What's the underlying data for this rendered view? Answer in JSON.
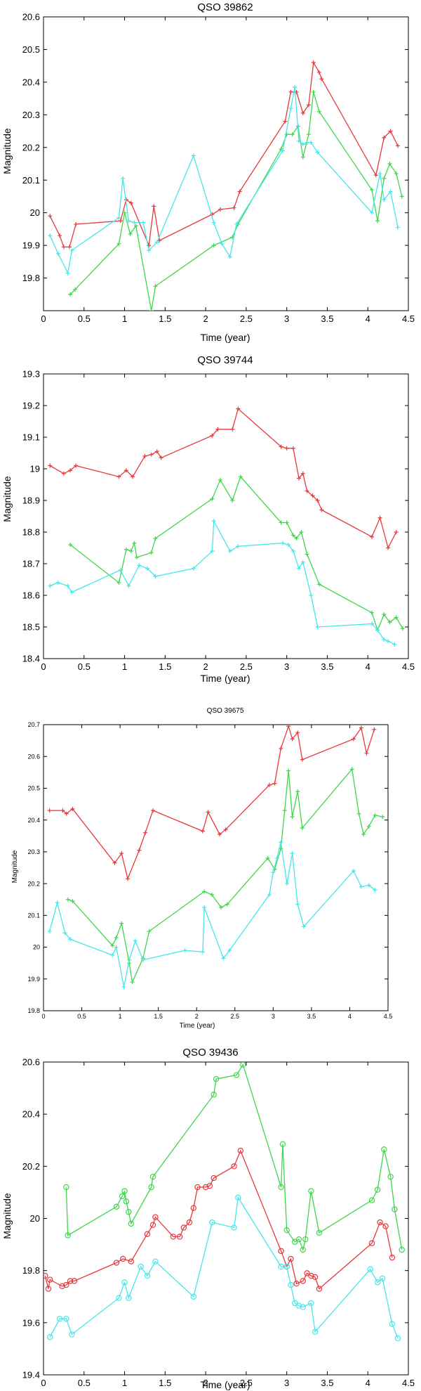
{
  "series_colors": {
    "red": "#e8383c",
    "green": "#3fd64a",
    "cyan": "#45e6ea"
  },
  "chart_data": [
    {
      "type": "line",
      "title": "QSO 39862",
      "xlabel": "Time (year)",
      "ylabel": "Magnitude",
      "xlim": [
        0,
        4.5
      ],
      "ylim": [
        19.7,
        20.6
      ],
      "xticks": [
        0,
        0.5,
        1,
        1.5,
        2,
        2.5,
        3,
        3.5,
        4,
        4.5
      ],
      "yticks": [
        19.8,
        19.9,
        20,
        20.1,
        20.2,
        20.3,
        20.4,
        20.5,
        20.6
      ],
      "xtick_labels": [
        "0",
        "0.5",
        "1",
        "1.5",
        "2",
        "2.5",
        "3",
        "3.5",
        "4",
        "4.5"
      ],
      "ytick_labels": [
        "19.8",
        "19.9",
        "20",
        "20.1",
        "20.2",
        "20.3",
        "20.4",
        "20.5",
        "20.6"
      ],
      "marker": "plus",
      "series": [
        {
          "name": "red",
          "color": "#e8383c",
          "x": [
            0.08,
            0.2,
            0.25,
            0.32,
            0.4,
            0.95,
            1.02,
            1.08,
            1.3,
            1.36,
            1.43,
            2.08,
            2.18,
            2.35,
            2.42,
            2.98,
            3.05,
            3.12,
            3.2,
            3.27,
            3.33,
            3.4,
            3.43,
            4.1,
            4.2,
            4.28,
            4.37
          ],
          "y": [
            19.99,
            19.93,
            19.895,
            19.895,
            19.965,
            19.975,
            20.04,
            20.03,
            19.9,
            20.02,
            19.915,
            19.995,
            20.01,
            20.015,
            20.065,
            20.28,
            20.37,
            20.37,
            20.305,
            20.33,
            20.46,
            20.43,
            20.41,
            20.115,
            20.23,
            20.25,
            20.205
          ]
        },
        {
          "name": "green",
          "color": "#3fd64a",
          "x": [
            0.33,
            0.39,
            0.93,
            1.0,
            1.07,
            1.14,
            1.33,
            1.38,
            2.1,
            2.33,
            2.4,
            2.93,
            3.0,
            3.07,
            3.14,
            3.2,
            3.27,
            3.33,
            3.4,
            4.05,
            4.12,
            4.2,
            4.27,
            4.35,
            4.42
          ],
          "y": [
            19.75,
            19.765,
            19.905,
            20.0,
            19.935,
            19.96,
            19.7,
            19.775,
            19.9,
            19.925,
            19.965,
            20.195,
            20.24,
            20.24,
            20.265,
            20.17,
            20.24,
            20.37,
            20.31,
            20.07,
            19.975,
            20.105,
            20.15,
            20.12,
            20.05
          ]
        },
        {
          "name": "cyan",
          "color": "#45e6ea",
          "x": [
            0.08,
            0.18,
            0.3,
            0.35,
            0.93,
            0.98,
            1.05,
            1.12,
            1.23,
            1.3,
            1.4,
            1.85,
            2.1,
            2.2,
            2.3,
            2.38,
            2.95,
            3.05,
            3.1,
            3.15,
            3.2,
            3.25,
            3.3,
            3.38,
            4.05,
            4.15,
            4.2,
            4.28,
            4.37
          ],
          "y": [
            19.93,
            19.875,
            19.815,
            19.885,
            19.985,
            20.105,
            19.975,
            19.97,
            19.97,
            19.885,
            19.91,
            20.175,
            19.97,
            19.905,
            19.865,
            19.965,
            20.19,
            20.32,
            20.385,
            20.22,
            20.21,
            20.215,
            20.215,
            20.185,
            20.0,
            20.12,
            20.04,
            20.065,
            19.955
          ]
        }
      ]
    },
    {
      "type": "line",
      "title": "QSO 39744",
      "xlabel": "Time (year)",
      "ylabel": "Magnitude",
      "xlim": [
        0,
        4.5
      ],
      "ylim": [
        18.4,
        19.3
      ],
      "xticks": [
        0,
        0.5,
        1,
        1.5,
        2,
        2.5,
        3,
        3.5,
        4,
        4.5
      ],
      "yticks": [
        18.4,
        18.5,
        18.6,
        18.7,
        18.8,
        18.9,
        19,
        19.1,
        19.2,
        19.3
      ],
      "xtick_labels": [
        "0",
        "0.5",
        "1",
        "1.5",
        "2",
        "2.5",
        "3",
        "3.5",
        "4",
        "4.5"
      ],
      "ytick_labels": [
        "18.4",
        "18.5",
        "18.6",
        "18.7",
        "18.8",
        "18.9",
        "19",
        "19.1",
        "19.2",
        "19.3"
      ],
      "marker": "plus",
      "series": [
        {
          "name": "red",
          "color": "#e8383c",
          "x": [
            0.08,
            0.25,
            0.33,
            0.4,
            0.93,
            1.02,
            1.1,
            1.25,
            1.33,
            1.4,
            1.45,
            2.08,
            2.15,
            2.33,
            2.4,
            2.93,
            3.0,
            3.08,
            3.15,
            3.2,
            3.25,
            3.32,
            3.38,
            3.43,
            4.05,
            4.15,
            4.25,
            4.35
          ],
          "y": [
            19.01,
            18.985,
            18.995,
            19.01,
            18.975,
            18.995,
            18.975,
            19.04,
            19.045,
            19.055,
            19.035,
            19.105,
            19.125,
            19.125,
            19.19,
            19.07,
            19.065,
            19.065,
            18.97,
            18.985,
            18.93,
            18.915,
            18.9,
            18.87,
            18.785,
            18.845,
            18.75,
            18.8
          ]
        },
        {
          "name": "green",
          "color": "#3fd64a",
          "x": [
            0.33,
            0.93,
            1.02,
            1.08,
            1.12,
            1.15,
            1.33,
            1.38,
            2.08,
            2.18,
            2.33,
            2.43,
            2.93,
            3.0,
            3.08,
            3.12,
            3.18,
            3.25,
            3.4,
            4.05,
            4.12,
            4.2,
            4.27,
            4.35,
            4.43
          ],
          "y": [
            18.76,
            18.64,
            18.745,
            18.74,
            18.765,
            18.72,
            18.735,
            18.78,
            18.905,
            18.965,
            18.9,
            18.975,
            18.83,
            18.83,
            18.79,
            18.78,
            18.8,
            18.73,
            18.635,
            18.545,
            18.49,
            18.54,
            18.515,
            18.53,
            18.495
          ]
        },
        {
          "name": "cyan",
          "color": "#45e6ea",
          "x": [
            0.08,
            0.18,
            0.3,
            0.35,
            0.95,
            1.05,
            1.18,
            1.28,
            1.38,
            1.85,
            2.08,
            2.1,
            2.3,
            2.4,
            2.95,
            3.02,
            3.08,
            3.15,
            3.2,
            3.3,
            3.38,
            4.05,
            4.12,
            4.2,
            4.25,
            4.33
          ],
          "y": [
            18.63,
            18.64,
            18.63,
            18.61,
            18.68,
            18.63,
            18.695,
            18.685,
            18.66,
            18.685,
            18.74,
            18.835,
            18.74,
            18.755,
            18.765,
            18.76,
            18.74,
            18.685,
            18.705,
            18.6,
            18.5,
            18.51,
            18.49,
            18.46,
            18.455,
            18.445
          ]
        }
      ]
    },
    {
      "type": "line",
      "title": "QSO 39675",
      "xlabel": "Time (year)",
      "ylabel": "Magnitude",
      "xlim": [
        0,
        4.5
      ],
      "ylim": [
        19.8,
        20.7
      ],
      "xticks": [
        0,
        0.5,
        1,
        1.5,
        2,
        2.5,
        3,
        3.5,
        4,
        4.5
      ],
      "yticks": [
        19.8,
        19.9,
        20,
        20.1,
        20.2,
        20.3,
        20.4,
        20.5,
        20.6,
        20.7
      ],
      "xtick_labels": [
        "0",
        "0.5",
        "1",
        "1.5",
        "2",
        "2.5",
        "3",
        "3.5",
        "4",
        "4.5"
      ],
      "ytick_labels": [
        "19.8",
        "19.9",
        "20",
        "20.1",
        "20.2",
        "20.3",
        "20.4",
        "20.5",
        "20.6",
        "20.7"
      ],
      "marker": "plus",
      "series": [
        {
          "name": "red",
          "color": "#e8383c",
          "x": [
            0.08,
            0.25,
            0.3,
            0.38,
            0.93,
            1.02,
            1.1,
            1.25,
            1.33,
            1.43,
            2.08,
            2.15,
            2.3,
            2.38,
            2.95,
            3.02,
            3.1,
            3.2,
            3.25,
            3.32,
            3.38,
            4.05,
            4.15,
            4.22,
            4.32
          ],
          "y": [
            20.43,
            20.43,
            20.42,
            20.435,
            20.265,
            20.295,
            20.215,
            20.305,
            20.36,
            20.43,
            20.365,
            20.425,
            20.355,
            20.37,
            20.51,
            20.515,
            20.625,
            20.695,
            20.655,
            20.675,
            20.59,
            20.655,
            20.69,
            20.61,
            20.685
          ]
        },
        {
          "name": "green",
          "color": "#3fd64a",
          "x": [
            0.32,
            0.38,
            0.9,
            0.95,
            1.02,
            1.12,
            1.16,
            1.3,
            1.38,
            2.1,
            2.2,
            2.32,
            2.4,
            2.93,
            3.02,
            3.1,
            3.15,
            3.2,
            3.25,
            3.32,
            3.38,
            4.03,
            4.12,
            4.18,
            4.25,
            4.33,
            4.43
          ],
          "y": [
            20.15,
            20.145,
            20.005,
            20.03,
            20.075,
            19.95,
            19.89,
            19.965,
            20.05,
            20.175,
            20.165,
            20.125,
            20.135,
            20.28,
            20.245,
            20.31,
            20.43,
            20.555,
            20.41,
            20.49,
            20.375,
            20.56,
            20.42,
            20.355,
            20.38,
            20.415,
            20.41
          ]
        },
        {
          "name": "cyan",
          "color": "#45e6ea",
          "x": [
            0.08,
            0.18,
            0.28,
            0.35,
            0.9,
            0.95,
            1.05,
            1.12,
            1.2,
            1.3,
            1.85,
            2.08,
            2.1,
            2.35,
            2.43,
            2.95,
            3.0,
            3.05,
            3.1,
            3.18,
            3.25,
            3.32,
            3.4,
            4.05,
            4.15,
            4.25,
            4.33
          ],
          "y": [
            20.05,
            20.14,
            20.045,
            20.025,
            19.975,
            20.0,
            19.875,
            19.96,
            20.02,
            19.96,
            19.99,
            19.985,
            20.125,
            19.965,
            19.99,
            20.165,
            20.235,
            20.28,
            20.33,
            20.2,
            20.295,
            20.135,
            20.065,
            20.24,
            20.19,
            20.195,
            20.18
          ]
        }
      ]
    },
    {
      "type": "line",
      "title": "QSO 39436",
      "xlabel": "Time (year)",
      "ylabel": "Magnitude",
      "xlim": [
        0,
        4.5
      ],
      "ylim": [
        19.4,
        20.6
      ],
      "xticks": [
        0,
        0.5,
        1,
        1.5,
        2,
        2.5,
        3,
        3.5,
        4,
        4.5
      ],
      "yticks": [
        19.4,
        19.6,
        19.8,
        20,
        20.2,
        20.4,
        20.6
      ],
      "xtick_labels": [
        "0",
        "0.5",
        "1",
        "1.5",
        "2",
        "2.5",
        "3",
        "3.5",
        "4",
        "4.5"
      ],
      "ytick_labels": [
        "19.4",
        "19.6",
        "19.8",
        "20",
        "20.2",
        "20.4",
        "20.6"
      ],
      "marker": "circle",
      "series": [
        {
          "name": "red",
          "color": "#e8383c",
          "x": [
            0.02,
            0.06,
            0.08,
            0.23,
            0.28,
            0.33,
            0.38,
            0.9,
            0.98,
            1.08,
            1.28,
            1.35,
            1.38,
            1.6,
            1.68,
            1.73,
            1.8,
            1.85,
            1.9,
            2.0,
            2.05,
            2.1,
            2.35,
            2.43,
            2.93,
            3.0,
            3.05,
            3.12,
            3.2,
            3.25,
            3.3,
            3.35,
            3.4,
            4.05,
            4.15,
            4.22,
            4.3
          ],
          "y": [
            19.78,
            19.73,
            19.765,
            19.74,
            19.745,
            19.76,
            19.76,
            19.83,
            19.845,
            19.835,
            19.94,
            19.975,
            20.005,
            19.93,
            19.93,
            19.965,
            19.985,
            20.04,
            20.12,
            20.12,
            20.125,
            20.155,
            20.2,
            20.26,
            19.875,
            19.815,
            19.845,
            19.75,
            19.76,
            19.79,
            19.78,
            19.775,
            19.73,
            19.905,
            19.985,
            19.97,
            19.85
          ]
        },
        {
          "name": "green",
          "color": "#3fd64a",
          "x": [
            0.28,
            0.3,
            0.9,
            0.97,
            1.0,
            1.02,
            1.05,
            1.08,
            1.33,
            1.35,
            2.1,
            2.13,
            2.38,
            2.46,
            2.93,
            2.95,
            3.0,
            3.1,
            3.15,
            3.2,
            3.23,
            3.3,
            3.4,
            4.05,
            4.12,
            4.2,
            4.28,
            4.33,
            4.42
          ],
          "y": [
            20.12,
            19.935,
            20.045,
            20.085,
            20.105,
            20.065,
            20.025,
            19.98,
            20.12,
            20.16,
            20.475,
            20.535,
            20.55,
            20.59,
            20.12,
            20.285,
            19.955,
            19.91,
            19.92,
            19.88,
            19.92,
            20.105,
            19.945,
            20.07,
            20.11,
            20.265,
            20.16,
            20.035,
            19.88
          ]
        },
        {
          "name": "cyan",
          "color": "#45e6ea",
          "x": [
            0.08,
            0.2,
            0.28,
            0.35,
            0.93,
            1.0,
            1.05,
            1.2,
            1.28,
            1.38,
            1.85,
            2.08,
            2.35,
            2.4,
            2.93,
            3.0,
            3.05,
            3.1,
            3.15,
            3.2,
            3.3,
            3.35,
            4.03,
            4.12,
            4.18,
            4.3,
            4.37
          ],
          "y": [
            19.545,
            19.615,
            19.615,
            19.555,
            19.695,
            19.755,
            19.695,
            19.815,
            19.78,
            19.835,
            19.7,
            19.985,
            19.965,
            20.08,
            19.815,
            19.815,
            19.745,
            19.675,
            19.665,
            19.66,
            19.675,
            19.565,
            19.805,
            19.755,
            19.77,
            19.595,
            19.54
          ]
        }
      ]
    }
  ]
}
